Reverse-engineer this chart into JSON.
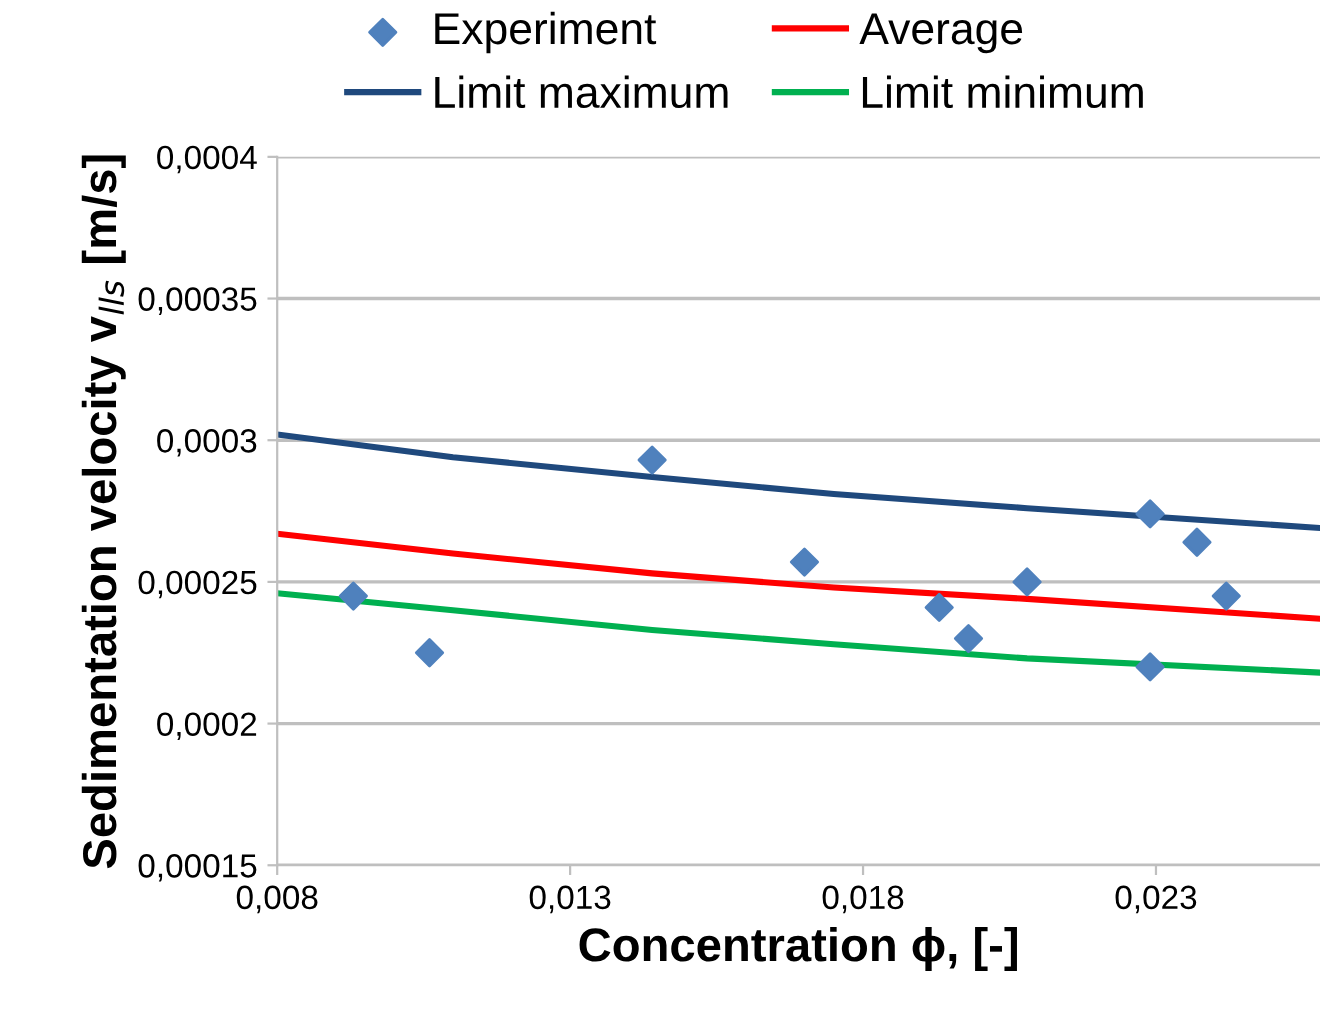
{
  "chart_data": {
    "type": "line",
    "xlabel": "Concentration ϕ, [-]",
    "ylabel": "Sedimentation velocity v$_{lls}$ [m/s]",
    "xlim": [
      0.008,
      0.0258
    ],
    "ylim": [
      0.00015,
      0.0004
    ],
    "xticks": [
      {
        "value": 0.008,
        "label": "0,008"
      },
      {
        "value": 0.013,
        "label": "0,013"
      },
      {
        "value": 0.018,
        "label": "0,018"
      },
      {
        "value": 0.023,
        "label": "0,023"
      }
    ],
    "yticks": [
      {
        "value": 0.00015,
        "label": "0,00015"
      },
      {
        "value": 0.0002,
        "label": "0,0002"
      },
      {
        "value": 0.00025,
        "label": "0,00025"
      },
      {
        "value": 0.0003,
        "label": "0,0003"
      },
      {
        "value": 0.00035,
        "label": "0,00035"
      },
      {
        "value": 0.0004,
        "label": "0,0004"
      }
    ],
    "grid": "y",
    "legend": "top",
    "series": [
      {
        "name": "Experiment",
        "type": "scatter",
        "marker": "diamond",
        "color": "#4f81bd",
        "x": [
          0.0093,
          0.0106,
          0.0144,
          0.017,
          0.0193,
          0.0198,
          0.0208,
          0.0229,
          0.0237,
          0.0242,
          0.0229
        ],
        "values": [
          0.000245,
          0.000225,
          0.000293,
          0.000257,
          0.000241,
          0.00023,
          0.00025,
          0.000274,
          0.000264,
          0.000245,
          0.00022
        ]
      },
      {
        "name": "Average",
        "color": "#ff0000",
        "x": [
          0.008,
          0.011,
          0.0144,
          0.0175,
          0.0208,
          0.0258
        ],
        "values": [
          0.000267,
          0.00026,
          0.000253,
          0.000248,
          0.000244,
          0.000237
        ]
      },
      {
        "name": "Limit maximum",
        "color": "#1f497d",
        "x": [
          0.008,
          0.011,
          0.0144,
          0.0175,
          0.0208,
          0.0258
        ],
        "values": [
          0.000302,
          0.000294,
          0.000287,
          0.000281,
          0.000276,
          0.000269
        ]
      },
      {
        "name": "Limit minimum",
        "color": "#00b050",
        "x": [
          0.008,
          0.011,
          0.0144,
          0.0175,
          0.0208,
          0.0258
        ],
        "values": [
          0.000246,
          0.00024,
          0.000233,
          0.000228,
          0.000223,
          0.000218
        ]
      }
    ]
  }
}
